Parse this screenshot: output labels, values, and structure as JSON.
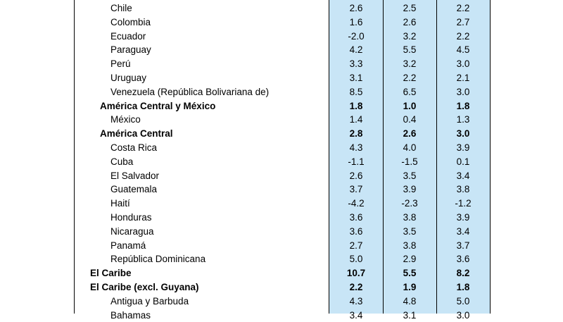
{
  "table": {
    "rows": [
      {
        "label": "Chile",
        "level": 2,
        "values": [
          "2.6",
          "2.5",
          "2.2"
        ]
      },
      {
        "label": "Colombia",
        "level": 2,
        "values": [
          "1.6",
          "2.6",
          "2.7"
        ]
      },
      {
        "label": "Ecuador",
        "level": 2,
        "values": [
          "-2.0",
          "3.2",
          "2.2"
        ]
      },
      {
        "label": "Paraguay",
        "level": 2,
        "values": [
          "4.2",
          "5.5",
          "4.5"
        ]
      },
      {
        "label": "Perú",
        "level": 2,
        "values": [
          "3.3",
          "3.2",
          "3.0"
        ]
      },
      {
        "label": "Uruguay",
        "level": 2,
        "values": [
          "3.1",
          "2.2",
          "2.1"
        ]
      },
      {
        "label": "Venezuela (República Bolivariana de)",
        "level": 2,
        "values": [
          "8.5",
          "6.5",
          "3.0"
        ]
      },
      {
        "label": "América Central y México",
        "level": 1,
        "values": [
          "1.8",
          "1.0",
          "1.8"
        ]
      },
      {
        "label": "México",
        "level": 2,
        "values": [
          "1.4",
          "0.4",
          "1.3"
        ]
      },
      {
        "label": "América Central",
        "level": 1,
        "values": [
          "2.8",
          "2.6",
          "3.0"
        ]
      },
      {
        "label": "Costa Rica",
        "level": 2,
        "values": [
          "4.3",
          "4.0",
          "3.9"
        ]
      },
      {
        "label": "Cuba",
        "level": 2,
        "values": [
          "-1.1",
          "-1.5",
          "0.1"
        ]
      },
      {
        "label": "El Salvador",
        "level": 2,
        "values": [
          "2.6",
          "3.5",
          "3.4"
        ]
      },
      {
        "label": "Guatemala",
        "level": 2,
        "values": [
          "3.7",
          "3.9",
          "3.8"
        ]
      },
      {
        "label": "Haití",
        "level": 2,
        "values": [
          "-4.2",
          "-2.3",
          "-1.2"
        ]
      },
      {
        "label": "Honduras",
        "level": 2,
        "values": [
          "3.6",
          "3.8",
          "3.9"
        ]
      },
      {
        "label": "Nicaragua",
        "level": 2,
        "values": [
          "3.6",
          "3.5",
          "3.4"
        ]
      },
      {
        "label": "Panamá",
        "level": 2,
        "values": [
          "2.7",
          "3.8",
          "3.7"
        ]
      },
      {
        "label": "República Dominicana",
        "level": 2,
        "values": [
          "5.0",
          "2.9",
          "3.6"
        ]
      },
      {
        "label": "El Caribe",
        "level": 0,
        "values": [
          "10.7",
          "5.5",
          "8.2"
        ]
      },
      {
        "label": "El Caribe (excl. Guyana)",
        "level": 0,
        "values": [
          "2.2",
          "1.9",
          "1.8"
        ]
      },
      {
        "label": "Antigua y Barbuda",
        "level": 2,
        "values": [
          "4.3",
          "4.8",
          "5.0"
        ]
      },
      {
        "label": "Bahamas",
        "level": 2,
        "values": [
          "3.4",
          "3.1",
          "3.0"
        ]
      }
    ]
  }
}
